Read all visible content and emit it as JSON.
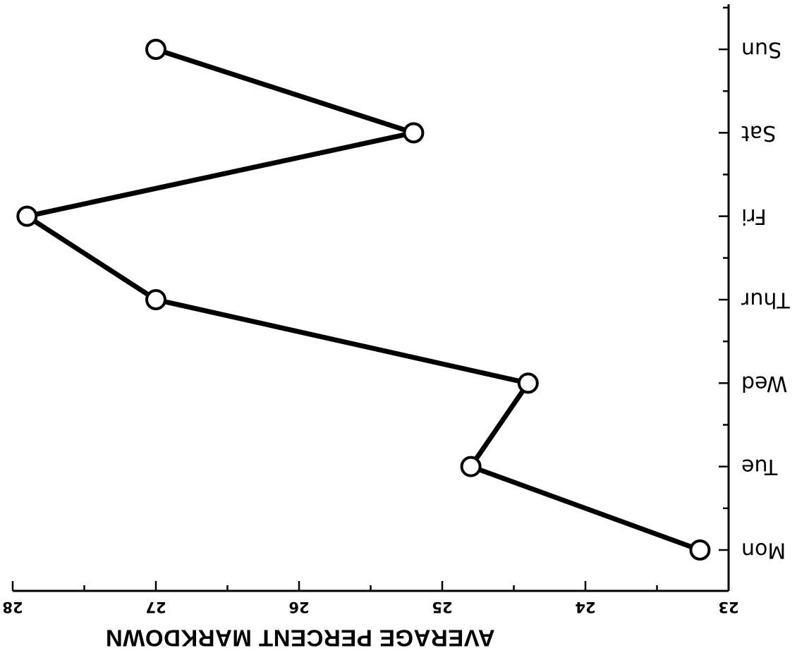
{
  "chart_data": {
    "type": "line",
    "orientation": "rotated-180",
    "categories": [
      "Mon",
      "Tue",
      "Wed",
      "Thur",
      "Fri",
      "Sat",
      "Sun"
    ],
    "values": [
      23.2,
      24.8,
      24.4,
      27.0,
      27.9,
      25.2,
      27.0
    ],
    "ylabel": "AVERAGE PERCENT MARKDOWN",
    "xlabel": "",
    "ylim": [
      23,
      28
    ],
    "yticks": [
      "23",
      "24",
      "25",
      "26",
      "27",
      "28"
    ],
    "marker": "open-circle",
    "grid": false,
    "legend": "none",
    "colors": {
      "line": "#000000",
      "marker_fill": "#ffffff"
    }
  }
}
